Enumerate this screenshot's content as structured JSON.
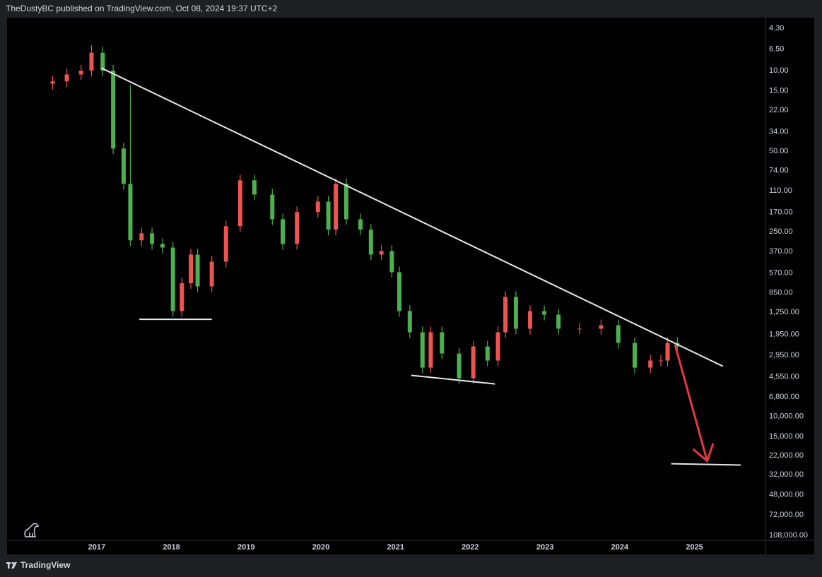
{
  "header": {
    "text": "TheDustyBC published on TradingView.com, Oct 08, 2024 19:37 UTC+2"
  },
  "footer": {
    "brand": "TradingView"
  },
  "chart_data": {
    "type": "candlestick",
    "log": true,
    "inverted": true,
    "grid": false,
    "up_color": "#4caf50",
    "down_color": "#ef5350",
    "xlim": [
      2015.8,
      2025.95
    ],
    "xticks": [
      2017,
      2018,
      2019,
      2020,
      2021,
      2022,
      2023,
      2024,
      2025
    ],
    "ylim": [
      3.47,
      158000
    ],
    "yticks": [
      {
        "value": 4.3,
        "label": "4.30"
      },
      {
        "value": 6.5,
        "label": "6.50"
      },
      {
        "value": 10,
        "label": "10.00"
      },
      {
        "value": 15,
        "label": "15.00"
      },
      {
        "value": 22,
        "label": "22.00"
      },
      {
        "value": 34,
        "label": "34.00"
      },
      {
        "value": 50,
        "label": "50.00"
      },
      {
        "value": 74,
        "label": "74.00"
      },
      {
        "value": 110,
        "label": "110.00"
      },
      {
        "value": 170,
        "label": "170.00"
      },
      {
        "value": 250,
        "label": "250.00"
      },
      {
        "value": 370,
        "label": "370.00"
      },
      {
        "value": 570,
        "label": "570.00"
      },
      {
        "value": 850,
        "label": "850.00"
      },
      {
        "value": 1250,
        "label": "1,250.00"
      },
      {
        "value": 1950,
        "label": "1,950.00"
      },
      {
        "value": 2950,
        "label": "2,950.00"
      },
      {
        "value": 4550,
        "label": "4,550.00"
      },
      {
        "value": 6800,
        "label": "6,800.00"
      },
      {
        "value": 10000,
        "label": "10,000.00"
      },
      {
        "value": 15000,
        "label": "15,000.00"
      },
      {
        "value": 22000,
        "label": "22,000.00"
      },
      {
        "value": 32000,
        "label": "32,000.00"
      },
      {
        "value": 48000,
        "label": "48,000.00"
      },
      {
        "value": 72000,
        "label": "72,000.00"
      },
      {
        "value": 108000,
        "label": "108,000.00"
      }
    ],
    "x": [
      2016.41,
      2016.6,
      2016.79,
      2016.93,
      2017.08,
      2017.22,
      2017.36,
      2017.45,
      2017.6,
      2017.74,
      2017.88,
      2018.02,
      2018.14,
      2018.26,
      2018.35,
      2018.54,
      2018.73,
      2018.92,
      2019.11,
      2019.35,
      2019.49,
      2019.68,
      2019.96,
      2020.1,
      2020.2,
      2020.34,
      2020.53,
      2020.67,
      2020.81,
      2020.95,
      2021.05,
      2021.19,
      2021.36,
      2021.47,
      2021.62,
      2021.85,
      2022.04,
      2022.23,
      2022.37,
      2022.47,
      2022.61,
      2022.8,
      2022.99,
      2023.18,
      2023.46,
      2023.75,
      2023.98,
      2024.2,
      2024.41,
      2024.55,
      2024.64,
      2024.77
    ],
    "open": [
      13.0,
      12.4,
      10.8,
      10.0,
      7.0,
      10.0,
      47.4,
      96.2,
      297,
      258,
      319,
      343,
      1222,
      700,
      395,
      745,
      455,
      224,
      89.5,
      119,
      195,
      319,
      169,
      137,
      240,
      96.2,
      195,
      240,
      395,
      368,
      562,
      1222,
      1866,
      3784,
      1866,
      2852,
      4677,
      2477,
      3283,
      1866,
      921,
      1738,
      1222,
      1312,
      1738,
      1738,
      1622,
      2307,
      3784,
      3283,
      3283,
      2307
    ],
    "high": [
      14.6,
      13.9,
      12.1,
      11.2,
      11.2,
      53.1,
      108,
      333,
      333,
      357,
      384,
      1369,
      1369,
      784,
      834,
      834,
      510,
      251,
      133,
      218,
      357,
      357,
      189,
      269,
      269,
      218,
      269,
      442,
      442,
      629,
      1369,
      2090,
      4238,
      4238,
      3194,
      5238,
      5238,
      3677,
      3677,
      2090,
      1947,
      1947,
      1469,
      1947,
      1947,
      1947,
      2584,
      4238,
      4238,
      3677,
      3677,
      2774
    ],
    "low": [
      11.1,
      9.6,
      8.9,
      6.0,
      6.2,
      8.9,
      42.3,
      13.3,
      230,
      230,
      285,
      306,
      625,
      353,
      353,
      406,
      200,
      79.9,
      79.9,
      106,
      174,
      151,
      122,
      122,
      85.9,
      85.9,
      174,
      214,
      329,
      329,
      502,
      1091,
      1666,
      1666,
      1666,
      2546,
      2212,
      2212,
      1666,
      822,
      822,
      1091,
      1091,
      1171,
      1552,
      1448,
      1448,
      2060,
      2931,
      2931,
      2060,
      2060
    ],
    "close": [
      12.4,
      10.8,
      10.0,
      7.0,
      10.0,
      47.4,
      96.2,
      297,
      258,
      319,
      343,
      1222,
      700,
      395,
      745,
      455,
      224,
      89.5,
      119,
      195,
      319,
      169,
      137,
      240,
      96.2,
      195,
      240,
      395,
      368,
      562,
      1222,
      1866,
      3784,
      1866,
      2852,
      4677,
      2477,
      3283,
      1866,
      921,
      1738,
      1222,
      1312,
      1738,
      1738,
      1622,
      2307,
      3784,
      3283,
      3283,
      2307,
      2477
    ],
    "drawings": [
      {
        "kind": "line",
        "color": "#e8e8e8",
        "x": [
          2017.06,
          2025.38
        ],
        "y": [
          9.48,
          3680
        ]
      },
      {
        "kind": "line",
        "color": "#e8e8e8",
        "x": [
          2017.57,
          2018.54
        ],
        "y": [
          1439,
          1439
        ]
      },
      {
        "kind": "line",
        "color": "#e8e8e8",
        "x": [
          2021.21,
          2022.33
        ],
        "y": [
          4416,
          5236
        ]
      },
      {
        "kind": "line",
        "color": "#e8e8e8",
        "x": [
          2024.69,
          2025.62
        ],
        "y": [
          25820,
          26500
        ]
      },
      {
        "kind": "arrow",
        "color": "#e53945",
        "x": [
          2024.74,
          2025.17
        ],
        "y": [
          2405,
          24430
        ]
      }
    ]
  }
}
